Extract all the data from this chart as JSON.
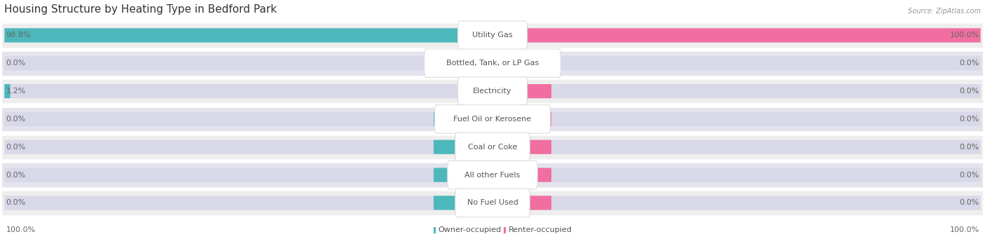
{
  "title": "Housing Structure by Heating Type in Bedford Park",
  "source_text": "Source: ZipAtlas.com",
  "categories": [
    "Utility Gas",
    "Bottled, Tank, or LP Gas",
    "Electricity",
    "Fuel Oil or Kerosene",
    "Coal or Coke",
    "All other Fuels",
    "No Fuel Used"
  ],
  "owner_values": [
    98.8,
    0.0,
    1.2,
    0.0,
    0.0,
    0.0,
    0.0
  ],
  "renter_values": [
    100.0,
    0.0,
    0.0,
    0.0,
    0.0,
    0.0,
    0.0
  ],
  "owner_color": "#4db8bc",
  "renter_color": "#f06fa0",
  "row_bg_light": "#eeeeee",
  "row_bg_dark": "#e4e4ee",
  "pill_track_color": "#d8d8e8",
  "label_color": "#555555",
  "value_color": "#666666",
  "title_color": "#333333",
  "source_color": "#999999",
  "max_value": 100.0,
  "bottom_left_label": "100.0%",
  "bottom_right_label": "100.0%",
  "owner_label": "Owner-occupied",
  "renter_label": "Renter-occupied",
  "zero_bar_width": 8.0,
  "title_fontsize": 11,
  "label_fontsize": 8,
  "value_fontsize": 8
}
